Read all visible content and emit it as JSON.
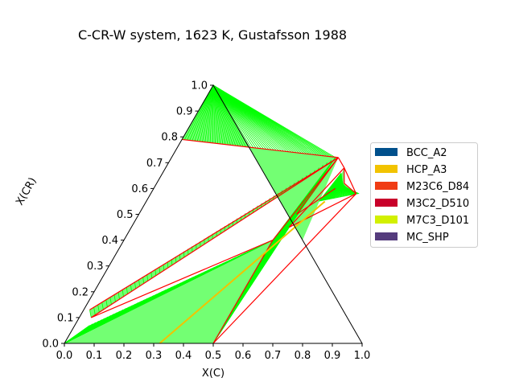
{
  "chart_data": {
    "type": "ternary phase diagram",
    "title": "C-CR-W system, 1623 K, Gustafsson 1988",
    "xlabel": "X(C)",
    "ylabel": "X(CR)",
    "xlim": [
      0,
      1
    ],
    "ylim": [
      0,
      1
    ],
    "x_ticks": [
      "0.0",
      "0.1",
      "0.2",
      "0.3",
      "0.4",
      "0.5",
      "0.6",
      "0.7",
      "0.8",
      "0.9",
      "1.0"
    ],
    "y_ticks": [
      "0.0",
      "0.1",
      "0.2",
      "0.3",
      "0.4",
      "0.5",
      "0.6",
      "0.7",
      "0.8",
      "0.9",
      "1.0"
    ],
    "legend": [
      {
        "name": "BCC_A2",
        "color": "#00508c"
      },
      {
        "name": "HCP_A3",
        "color": "#f2c300"
      },
      {
        "name": "M23C6_D84",
        "color": "#f03c14"
      },
      {
        "name": "M3C2_D510",
        "color": "#c8002a"
      },
      {
        "name": "M7C3_D101",
        "color": "#d2f000"
      },
      {
        "name": "MC_SHP",
        "color": "#553c7d"
      }
    ],
    "legend_position": "right",
    "tieline_color": "#00ff00",
    "boundary_color": "#ff0000",
    "regions": [
      {
        "type": "fan",
        "apex": [
          0,
          0
        ],
        "from": [
          [
            0.05,
            0.07
          ],
          [
            0.5,
            0.4
          ]
        ],
        "to": [
          [
            0.32,
            0
          ],
          [
            0.5,
            0
          ]
        ]
      },
      {
        "type": "fan",
        "apex": [
          0,
          1
        ],
        "from": [
          [
            0,
            0.79
          ],
          [
            0.55,
            0.72
          ]
        ],
        "to": [
          [
            0.6,
            0.4
          ],
          [
            0.6,
            0.4
          ]
        ]
      },
      {
        "type": "band",
        "a": [
          [
            0.02,
            0.13
          ],
          [
            0.55,
            0.72
          ]
        ],
        "b": [
          [
            0.04,
            0.1
          ],
          [
            0.55,
            0.71
          ]
        ]
      },
      {
        "type": "band",
        "a": [
          [
            0.5,
            0.4
          ],
          [
            0.5,
            0.0
          ]
        ],
        "b": [
          [
            0.55,
            0.72
          ],
          [
            0.53,
            0.45
          ]
        ]
      },
      {
        "type": "band",
        "a": [
          [
            0.6,
            0.66
          ],
          [
            0.63,
            0.61
          ]
        ],
        "b": [
          [
            0.58,
            0.55
          ],
          [
            0.7,
            0.58
          ]
        ]
      }
    ],
    "boundaries": [
      [
        [
          0.0,
          0.79
        ],
        [
          0.56,
          0.72
        ]
      ],
      [
        [
          0.02,
          0.13
        ],
        [
          0.56,
          0.72
        ]
      ],
      [
        [
          0.04,
          0.1
        ],
        [
          0.56,
          0.72
        ]
      ],
      [
        [
          0.04,
          0.1
        ],
        [
          0.5,
          0.4
        ]
      ],
      [
        [
          0.5,
          0.4
        ],
        [
          0.5,
          0.0
        ]
      ],
      [
        [
          0.5,
          0.4
        ],
        [
          0.56,
          0.72
        ]
      ],
      [
        [
          0.56,
          0.72
        ],
        [
          0.53,
          0.5
        ]
      ],
      [
        [
          0.53,
          0.5
        ],
        [
          0.61,
          0.6
        ]
      ],
      [
        [
          0.56,
          0.72
        ],
        [
          0.6,
          0.68
        ]
      ],
      [
        [
          0.6,
          0.68
        ],
        [
          0.53,
          0.45
        ]
      ],
      [
        [
          0.6,
          0.68
        ],
        [
          0.63,
          0.62
        ]
      ],
      [
        [
          0.63,
          0.62
        ],
        [
          0.69,
          0.58
        ]
      ],
      [
        [
          0.69,
          0.58
        ],
        [
          0.6,
          0.68
        ]
      ],
      [
        [
          0.69,
          0.58
        ],
        [
          0.5,
          0.0
        ]
      ],
      [
        [
          0.53,
          0.45
        ],
        [
          0.69,
          0.58
        ]
      ]
    ],
    "hcp_line": [
      [
        0.32,
        0.0
      ],
      [
        0.6,
        0.55
      ]
    ]
  }
}
